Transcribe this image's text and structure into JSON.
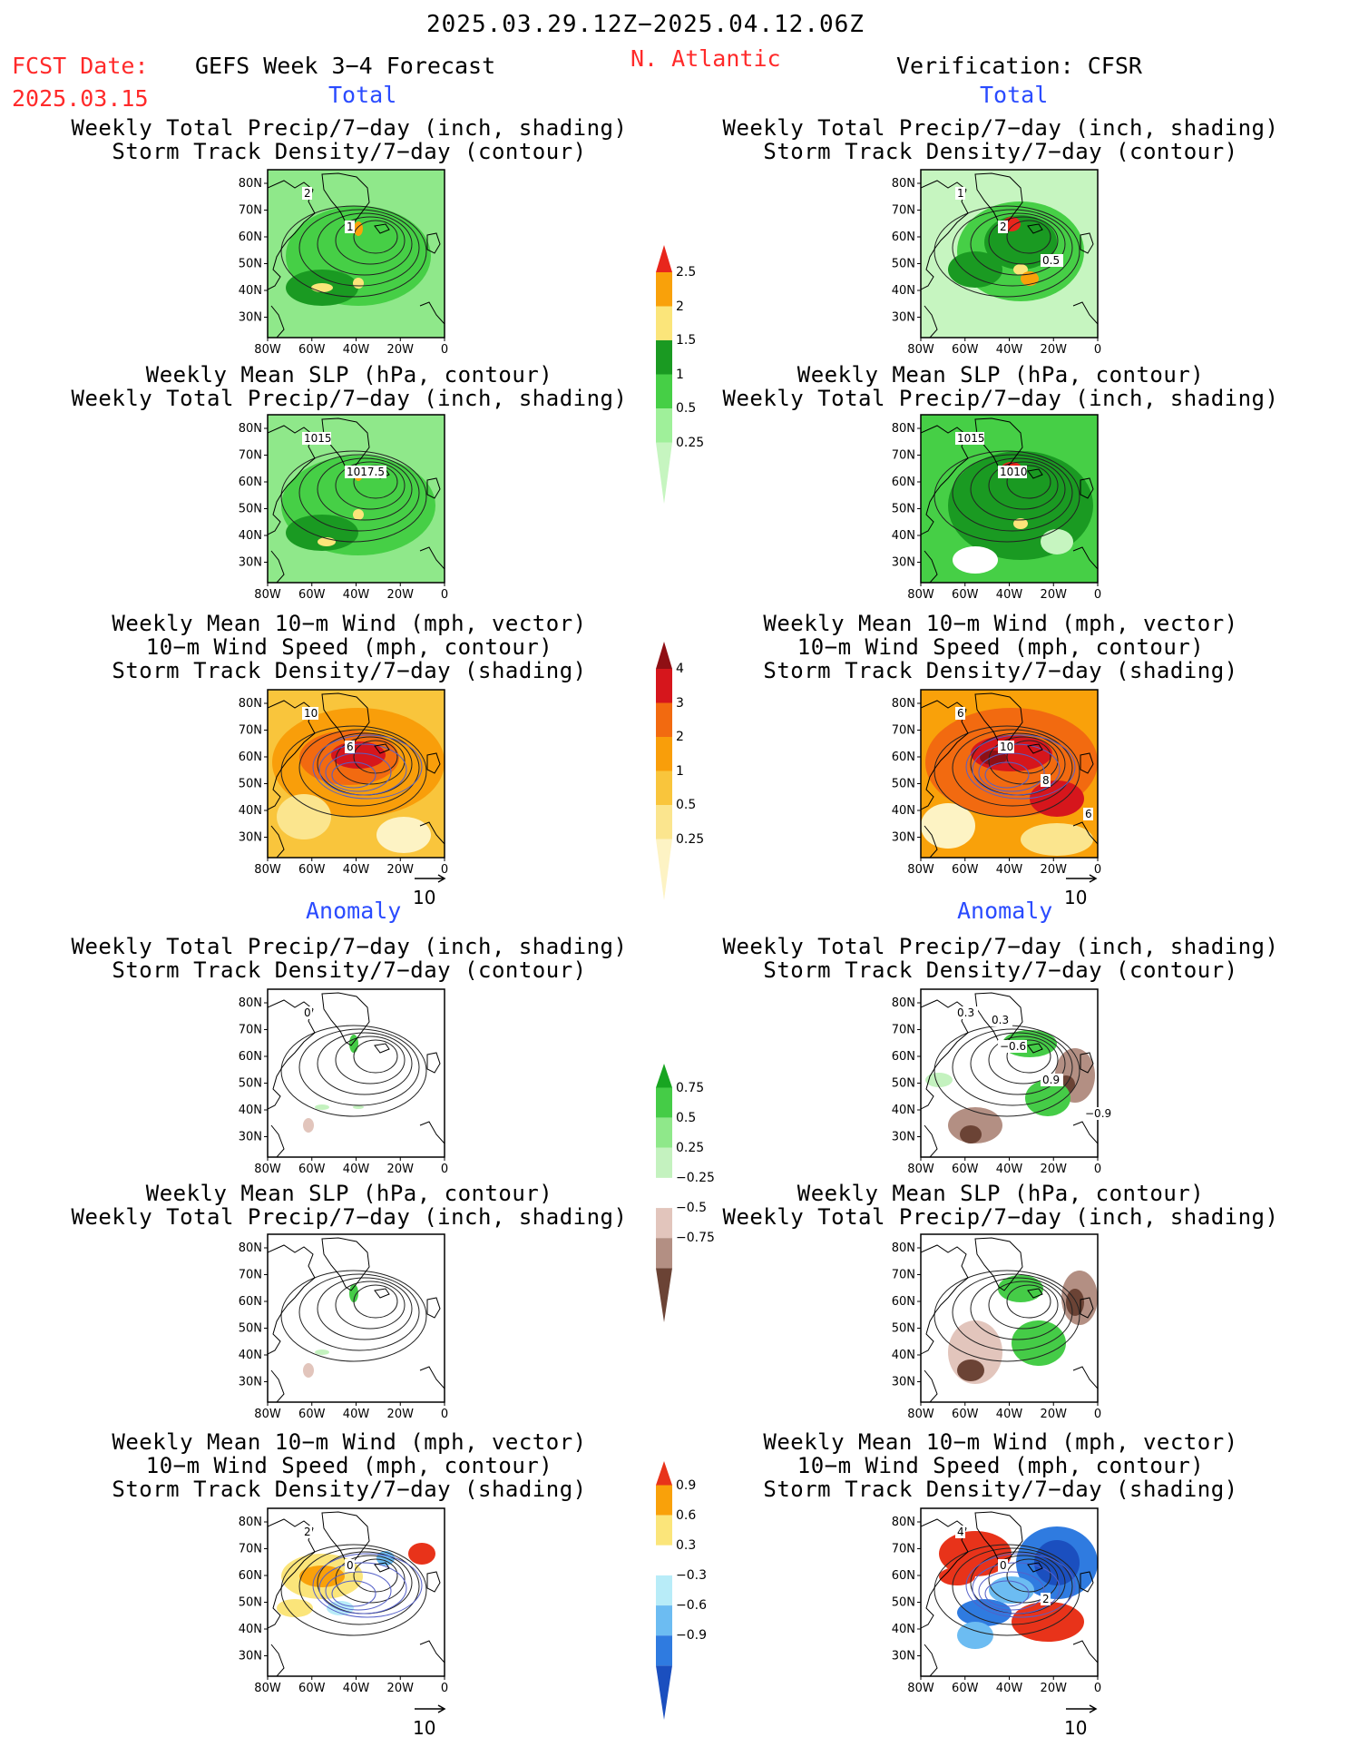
{
  "header": {
    "date_range": "2025.03.29.12Z−2025.04.12.06Z",
    "fcst_label": "FCST Date:",
    "fcst_date": "2025.03.15",
    "product": "GEFS Week 3−4 Forecast",
    "region": "N. Atlantic",
    "verification": "Verification: CFSR"
  },
  "sections": {
    "total": "Total",
    "anomaly": "Anomaly"
  },
  "titles": {
    "precip_storm": [
      "Weekly Total Precip/7−day (inch, shading)",
      "Storm Track Density/7−day (contour)"
    ],
    "slp_precip": [
      "Weekly Mean SLP (hPa, contour)",
      "Weekly Total Precip/7−day (inch, shading)"
    ],
    "wind": [
      "Weekly Mean 10−m Wind (mph, vector)",
      "10−m Wind Speed (mph, contour)",
      "Storm Track Density/7−day (shading)"
    ]
  },
  "axes": {
    "lat_ticks": [
      "80N",
      "70N",
      "60N",
      "50N",
      "40N",
      "30N"
    ],
    "lon_ticks": [
      "80W",
      "60W",
      "40W",
      "20W",
      "0"
    ]
  },
  "vector_ref": "10",
  "colorbars": {
    "precip_total": {
      "labels": [
        "2.5",
        "2",
        "1.5",
        "1",
        "0.5",
        "0.25"
      ],
      "colors": [
        "#e8261c",
        "#f9a10a",
        "#fbe57a",
        "#1a9a22",
        "#46cf46",
        "#9ff09a",
        "#c6f5c0"
      ]
    },
    "storm_total": {
      "labels": [
        "4",
        "3",
        "2",
        "1",
        "0.5",
        "0.25"
      ],
      "colors": [
        "#8f0f14",
        "#d6161c",
        "#f26a10",
        "#f99e0a",
        "#f9c53c",
        "#fbe58e",
        "#fdf3c4"
      ]
    },
    "precip_anom": {
      "labels": [
        "0.75",
        "0.5",
        "0.25",
        "−0.25",
        "−0.5",
        "−0.75"
      ],
      "colors": [
        "#18a521",
        "#45cc47",
        "#8fe88a",
        "#c4f2bf",
        "#ffffff",
        "#e2c5bc",
        "#b38f83",
        "#6b4335"
      ]
    },
    "storm_anom": {
      "labels": [
        "0.9",
        "0.6",
        "0.3",
        "−0.3",
        "−0.6",
        "−0.9"
      ],
      "colors": [
        "#e8331a",
        "#f9a10a",
        "#fbe57a",
        "#ffffff",
        "#b8ecf8",
        "#6cbcf2",
        "#2f7be0",
        "#1b4fbf"
      ]
    }
  },
  "contour_labels": {
    "L1": [
      "2",
      "1"
    ],
    "R1": [
      "1",
      "2",
      "0.5"
    ],
    "L2": [
      "1015",
      "1017.5"
    ],
    "R2": [
      "1015",
      "1010"
    ],
    "L3": [
      "10",
      "6"
    ],
    "R3": [
      "6",
      "10",
      "8",
      "6"
    ],
    "L4": [
      "0"
    ],
    "R4": [
      "0.3",
      "−0.6",
      "0.9",
      "−0.9",
      "0.3"
    ],
    "L6": [
      "2",
      "0"
    ],
    "R6": [
      "4",
      "0",
      "2"
    ]
  },
  "chart_data": [
    {
      "type": "heatmap",
      "id": "L1",
      "title": [
        "Weekly Total Precip/7−day (inch, shading)",
        "Storm Track Density/7−day (contour)"
      ],
      "section": "Total",
      "source": "GEFS Week 3−4 Forecast",
      "x_range": [
        -80,
        0
      ],
      "y_range": [
        25,
        85
      ],
      "contour_labels": [
        "2",
        "1"
      ]
    },
    {
      "type": "heatmap",
      "id": "R1",
      "title": [
        "Weekly Total Precip/7−day (inch, shading)",
        "Storm Track Density/7−day (contour)"
      ],
      "section": "Total",
      "source": "CFSR",
      "x_range": [
        -80,
        0
      ],
      "y_range": [
        25,
        85
      ],
      "contour_labels": [
        "1",
        "2",
        "0.5"
      ]
    },
    {
      "type": "heatmap",
      "id": "L2",
      "title": [
        "Weekly Mean SLP (hPa, contour)",
        "Weekly Total Precip/7−day (inch, shading)"
      ],
      "section": "Total",
      "source": "GEFS Week 3−4 Forecast",
      "x_range": [
        -80,
        0
      ],
      "y_range": [
        25,
        85
      ],
      "contour_labels": [
        "1015",
        "1017.5"
      ]
    },
    {
      "type": "heatmap",
      "id": "R2",
      "title": [
        "Weekly Mean SLP (hPa, contour)",
        "Weekly Total Precip/7−day (inch, shading)"
      ],
      "section": "Total",
      "source": "CFSR",
      "x_range": [
        -80,
        0
      ],
      "y_range": [
        25,
        85
      ],
      "contour_labels": [
        "1015",
        "1010"
      ]
    },
    {
      "type": "heatmap",
      "id": "L3",
      "title": [
        "Weekly Mean 10−m Wind (mph, vector)",
        "10−m Wind Speed (mph, contour)",
        "Storm Track Density/7−day (shading)"
      ],
      "section": "Total",
      "source": "GEFS Week 3−4 Forecast",
      "x_range": [
        -80,
        0
      ],
      "y_range": [
        25,
        85
      ],
      "contour_labels": [
        "10",
        "6"
      ],
      "vector_ref": 10
    },
    {
      "type": "heatmap",
      "id": "R3",
      "title": [
        "Weekly Mean 10−m Wind (mph, vector)",
        "10−m Wind Speed (mph, contour)",
        "Storm Track Density/7−day (shading)"
      ],
      "section": "Total",
      "source": "CFSR",
      "x_range": [
        -80,
        0
      ],
      "y_range": [
        25,
        85
      ],
      "contour_labels": [
        "6",
        "10",
        "8",
        "6"
      ],
      "vector_ref": 10
    },
    {
      "type": "heatmap",
      "id": "L4",
      "title": [
        "Weekly Total Precip/7−day (inch, shading)",
        "Storm Track Density/7−day (contour)"
      ],
      "section": "Anomaly",
      "source": "GEFS Week 3−4 Forecast",
      "x_range": [
        -80,
        0
      ],
      "y_range": [
        25,
        85
      ],
      "contour_labels": [
        "0"
      ]
    },
    {
      "type": "heatmap",
      "id": "R4",
      "title": [
        "Weekly Total Precip/7−day (inch, shading)",
        "Storm Track Density/7−day (contour)"
      ],
      "section": "Anomaly",
      "source": "CFSR",
      "x_range": [
        -80,
        0
      ],
      "y_range": [
        25,
        85
      ],
      "contour_labels": [
        "0.3",
        "−0.6",
        "0.9",
        "−0.9",
        "0.3"
      ]
    },
    {
      "type": "heatmap",
      "id": "L5",
      "title": [
        "Weekly Mean SLP (hPa, contour)",
        "Weekly Total Precip/7−day (inch, shading)"
      ],
      "section": "Anomaly",
      "source": "GEFS Week 3−4 Forecast",
      "x_range": [
        -80,
        0
      ],
      "y_range": [
        25,
        85
      ]
    },
    {
      "type": "heatmap",
      "id": "R5",
      "title": [
        "Weekly Mean SLP (hPa, contour)",
        "Weekly Total Precip/7−day (inch, shading)"
      ],
      "section": "Anomaly",
      "source": "CFSR",
      "x_range": [
        -80,
        0
      ],
      "y_range": [
        25,
        85
      ]
    },
    {
      "type": "heatmap",
      "id": "L6",
      "title": [
        "Weekly Mean 10−m Wind (mph, vector)",
        "10−m Wind Speed (mph, contour)",
        "Storm Track Density/7−day (shading)"
      ],
      "section": "Anomaly",
      "source": "GEFS Week 3−4 Forecast",
      "x_range": [
        -80,
        0
      ],
      "y_range": [
        25,
        85
      ],
      "contour_labels": [
        "2",
        "0"
      ],
      "vector_ref": 10
    },
    {
      "type": "heatmap",
      "id": "R6",
      "title": [
        "Weekly Mean 10−m Wind (mph, vector)",
        "10−m Wind Speed (mph, contour)",
        "Storm Track Density/7−day (shading)"
      ],
      "section": "Anomaly",
      "source": "CFSR",
      "x_range": [
        -80,
        0
      ],
      "y_range": [
        25,
        85
      ],
      "contour_labels": [
        "4",
        "0",
        "2"
      ],
      "vector_ref": 10
    }
  ]
}
